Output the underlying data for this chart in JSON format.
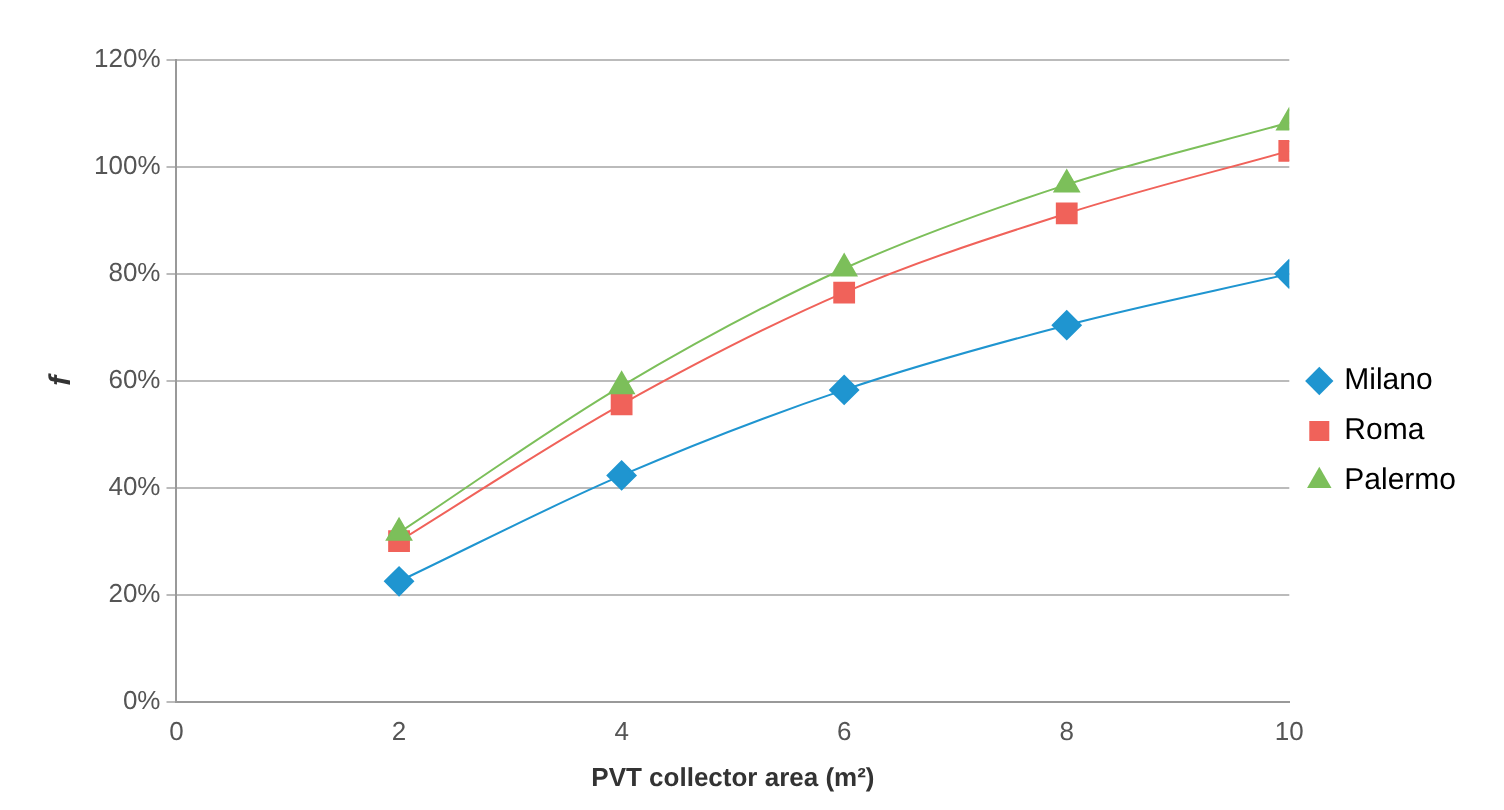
{
  "chart_data": {
    "type": "line",
    "xlabel": "PVT collector area (m²)",
    "ylabel": "f",
    "x": [
      2,
      4,
      6,
      8,
      10
    ],
    "series": [
      {
        "name": "Milano",
        "color": "#1f95d0",
        "marker": "diamond",
        "values": [
          22.5,
          42.3,
          58.3,
          70.4,
          80
        ]
      },
      {
        "name": "Roma",
        "color": "#f0625a",
        "marker": "square",
        "values": [
          30,
          55.6,
          76.5,
          91.3,
          103
        ]
      },
      {
        "name": "Palermo",
        "color": "#7cbf5a",
        "marker": "triangle",
        "values": [
          31.6,
          59,
          81,
          96.7,
          108.3
        ]
      }
    ],
    "xlim": [
      0,
      10
    ],
    "xticks": [
      0,
      2,
      4,
      6,
      8,
      10
    ],
    "ylim": [
      0,
      120
    ],
    "yticks": [
      {
        "value": 0,
        "label": "0%"
      },
      {
        "value": 20,
        "label": "20%"
      },
      {
        "value": 40,
        "label": "40%"
      },
      {
        "value": 60,
        "label": "60%"
      },
      {
        "value": 80,
        "label": "80%"
      },
      {
        "value": 100,
        "label": "100%"
      },
      {
        "value": 120,
        "label": "120%"
      }
    ],
    "grid": "y",
    "legend": "right",
    "line_style": "solid"
  }
}
